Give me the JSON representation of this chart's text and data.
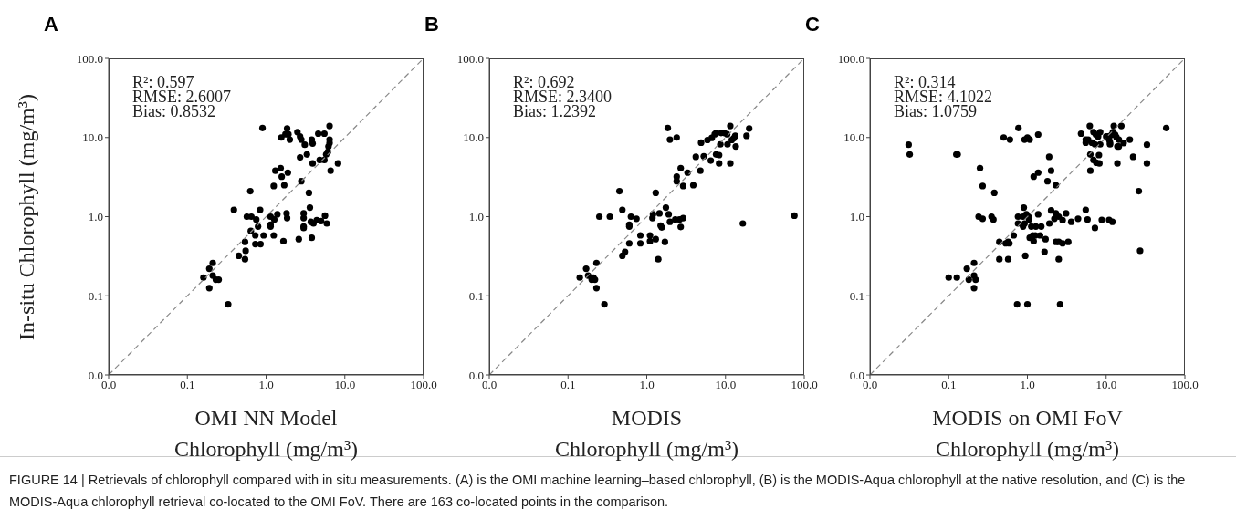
{
  "chart_data": [
    {
      "type": "scatter",
      "title": "A",
      "xlabel": "OMI NN Model\nChlorophyll (mg/m³)",
      "ylabel": "In-situ Chlorophyll (mg/m³)",
      "log": "xy",
      "marker": "circle",
      "xlim": [
        0.01,
        100
      ],
      "ylim": [
        0.01,
        100
      ],
      "xticks": [
        {
          "value": 0.01,
          "label": "0.0"
        },
        {
          "value": 0.1,
          "label": "0.1"
        },
        {
          "value": 1,
          "label": "1.0"
        },
        {
          "value": 10,
          "label": "10.0"
        },
        {
          "value": 100,
          "label": "100.0"
        }
      ],
      "yticks": [
        {
          "value": 0.01,
          "label": "0.0"
        },
        {
          "value": 0.1,
          "label": "0.1"
        },
        {
          "value": 1,
          "label": "1.0"
        },
        {
          "value": 10,
          "label": "10.0"
        },
        {
          "value": 100,
          "label": "100.0"
        }
      ],
      "annotations": [
        "R²: 0.597",
        "RMSE: 2.6007",
        "Bias: 0.8532"
      ],
      "series": [
        {
          "type": "scatter",
          "color": "#000000",
          "x": [
            0.16,
            0.19,
            0.21,
            0.19,
            0.21,
            0.23,
            0.25,
            0.33,
            0.39,
            0.45,
            0.9,
            0.63,
            0.54,
            0.55,
            0.54,
            0.57,
            0.65,
            0.75,
            0.64,
            0.79,
            0.73,
            0.73,
            0.85,
            0.84,
            0.93,
            1.14,
            1.14,
            1.14,
            1.27,
            1.39,
            1.25,
            1.25,
            1.31,
            1.53,
            1.58,
            1.7,
            1.89,
            1.56,
            1.85,
            1.92,
            2.0,
            1.76,
            1.66,
            1.82,
            1.85,
            2.5,
            2.7,
            2.8,
            3.1,
            2.7,
            2.8,
            3.0,
            3.0,
            3.0,
            3.0,
            2.6,
            3.3,
            3.5,
            3.6,
            3.8,
            3.9,
            3.9,
            3.8,
            3.7,
            4.0,
            4.4,
            5.0,
            5.6,
            5.9,
            4.6,
            5.5,
            4.8,
            5.5,
            5.8,
            6.1,
            6.4,
            6.4,
            6.4,
            6.2,
            6.6,
            8.2
          ],
          "values": [
            0.17,
            0.22,
            0.26,
            0.125,
            0.18,
            0.16,
            0.16,
            0.078,
            1.22,
            0.32,
            13.2,
            2.1,
            0.48,
            0.37,
            0.29,
            1.0,
            1.0,
            0.92,
            0.66,
            0.75,
            0.58,
            0.45,
            0.45,
            1.22,
            0.58,
            1.0,
            0.79,
            0.75,
            0.92,
            1.07,
            2.44,
            0.58,
            3.8,
            4.1,
            3.2,
            2.5,
            3.6,
            10,
            13,
            11,
            9.4,
            11,
            0.49,
            1.1,
            0.96,
            11.7,
            10.3,
            9.4,
            8.1,
            5.6,
            2.8,
            1.1,
            0.96,
            0.75,
            0.72,
            0.52,
            6.1,
            2.0,
            1.3,
            9.4,
            8.4,
            4.7,
            0.54,
            0.86,
            0.82,
            0.9,
            0.88,
            1.03,
            0.82,
            11.2,
            11.2,
            5.2,
            5.2,
            6.1,
            6.6,
            14.0,
            9.4,
            8.5,
            7.7,
            3.8,
            4.7
          ]
        },
        {
          "type": "line",
          "color": "#888888",
          "line_style": "dashed",
          "marker": "none",
          "x": [
            0.01,
            100
          ],
          "values": [
            0.01,
            100
          ]
        }
      ]
    },
    {
      "type": "scatter",
      "title": "B",
      "xlabel": "MODIS\nChlorophyll (mg/m³)",
      "log": "xy",
      "marker": "circle",
      "xlim": [
        0.01,
        100
      ],
      "ylim": [
        0.01,
        100
      ],
      "xticks": [
        {
          "value": 0.01,
          "label": "0.0"
        },
        {
          "value": 0.1,
          "label": "0.1"
        },
        {
          "value": 1,
          "label": "1.0"
        },
        {
          "value": 10,
          "label": "10.0"
        },
        {
          "value": 100,
          "label": "100.0"
        }
      ],
      "yticks": [
        {
          "value": 0.01,
          "label": "0.0"
        },
        {
          "value": 0.1,
          "label": "0.1"
        },
        {
          "value": 1,
          "label": "1.0"
        },
        {
          "value": 10,
          "label": "10.0"
        },
        {
          "value": 100,
          "label": "100.0"
        }
      ],
      "annotations": [
        "R²: 0.692",
        "RMSE: 2.3400",
        "Bias: 1.2392"
      ],
      "series": [
        {
          "type": "scatter",
          "color": "#000000",
          "x": [
            0.141,
            0.17,
            0.18,
            0.2,
            0.21,
            0.22,
            0.23,
            0.23,
            0.29,
            0.25,
            0.34,
            0.45,
            0.49,
            0.49,
            0.53,
            0.6,
            0.6,
            0.6,
            0.63,
            0.74,
            0.83,
            0.83,
            1.1,
            1.1,
            1.18,
            1.2,
            1.3,
            1.3,
            1.4,
            1.45,
            1.5,
            1.55,
            1.7,
            1.75,
            1.9,
            1.97,
            2.3,
            2.6,
            2.9,
            2.7,
            1.85,
            1.97,
            2.4,
            2.4,
            2.4,
            2.7,
            2.9,
            3.3,
            3.9,
            4.2,
            4.8,
            4.9,
            5.3,
            5.9,
            6.5,
            6.7,
            7.3,
            7.6,
            7.6,
            8.3,
            8.3,
            8.6,
            8.8,
            9.6,
            10.5,
            10.6,
            11.5,
            11.5,
            12,
            12.7,
            13.3,
            13.5,
            18.5,
            20,
            16.6,
            75
          ],
          "values": [
            0.17,
            0.22,
            0.18,
            0.16,
            0.17,
            0.16,
            0.26,
            0.125,
            0.078,
            1.0,
            1.0,
            2.1,
            1.22,
            0.32,
            0.36,
            0.46,
            0.79,
            0.75,
            1.0,
            0.94,
            0.58,
            0.46,
            0.58,
            0.49,
            0.96,
            1.07,
            2.0,
            0.52,
            0.29,
            1.1,
            0.77,
            0.73,
            0.48,
            1.3,
            1.07,
            0.86,
            0.92,
            0.92,
            0.96,
            0.74,
            13.2,
            9.4,
            10,
            3.2,
            2.8,
            4.1,
            2.44,
            3.6,
            2.5,
            5.7,
            3.8,
            8.6,
            5.8,
            9.3,
            5.1,
            9.9,
            11,
            11.4,
            6.1,
            6.0,
            4.7,
            8.2,
            11.4,
            11.4,
            11,
            8.2,
            4.7,
            14,
            9.3,
            9.8,
            10.5,
            7.7,
            10.5,
            13,
            0.82,
            1.03
          ]
        },
        {
          "type": "line",
          "color": "#888888",
          "line_style": "dashed",
          "marker": "none",
          "x": [
            0.01,
            100
          ],
          "values": [
            0.01,
            100
          ]
        }
      ]
    },
    {
      "type": "scatter",
      "title": "C",
      "xlabel": "MODIS on OMI FoV\nChlorophyll (mg/m³)",
      "log": "xy",
      "marker": "circle",
      "xlim": [
        0.01,
        100
      ],
      "ylim": [
        0.01,
        100
      ],
      "xticks": [
        {
          "value": 0.01,
          "label": "0.0"
        },
        {
          "value": 0.1,
          "label": "0.1"
        },
        {
          "value": 1,
          "label": "1.0"
        },
        {
          "value": 10,
          "label": "10.0"
        },
        {
          "value": 100,
          "label": "100.0"
        }
      ],
      "yticks": [
        {
          "value": 0.01,
          "label": "0.0"
        },
        {
          "value": 0.1,
          "label": "0.1"
        },
        {
          "value": 1,
          "label": "1.0"
        },
        {
          "value": 10,
          "label": "10.0"
        },
        {
          "value": 100,
          "label": "100.0"
        }
      ],
      "annotations": [
        "R²: 0.314",
        "RMSE: 4.1022",
        "Bias: 1.0759",
        "FIGURE 14 | Retrievals of chlorophyll compared with in situ measurements. (A) is the OMI machine learning–based chlorophyll, (B) is the MODIS-Aqua chlorophyll at the native resolution, and (C) is the MODIS-Aqua chlorophyll retrieval co-located to the OMI FoV. There are 163 co-located points in the comparison."
      ],
      "series": [
        {
          "type": "scatter",
          "color": "#000000",
          "x": [
            0.031,
            0.032,
            0.125,
            0.13,
            0.1,
            0.127,
            0.17,
            0.18,
            0.21,
            0.21,
            0.22,
            0.21,
            0.25,
            0.27,
            0.38,
            0.24,
            0.27,
            0.35,
            0.37,
            0.44,
            0.44,
            0.5,
            0.6,
            0.77,
            0.92,
            1.0,
            1.07,
            1.37,
            0.53,
            0.57,
            0.59,
            0.57,
            0.67,
            0.74,
            1.0,
            0.76,
            0.76,
            0.9,
            0.88,
            0.97,
            1.03,
            0.88,
            0.92,
            1.05,
            0.94,
            1.07,
            1.17,
            1.2,
            1.12,
            1.28,
            1.5,
            1.37,
            1.26,
            1.45,
            1.7,
            1.65,
            1.2,
            1.37,
            1.8,
            1.89,
            2.0,
            2.3,
            1.9,
            2.0,
            2.2,
            2.3,
            2.5,
            2.8,
            3.1,
            2.3,
            2.5,
            2.8,
            3.3,
            2.5,
            2.6,
            3.6,
            4.4,
            5.5,
            5.8,
            7.2,
            8.8,
            10.9,
            12,
            27,
            26,
            33,
            33,
            22,
            20,
            58,
            4.8,
            5.5,
            5.5,
            5.9,
            6.2,
            6.3,
            6.3,
            6.6,
            6.9,
            7.2,
            6.9,
            7.4,
            7.9,
            8.4,
            7.5,
            8.2,
            8.1,
            8.4,
            10,
            10.5,
            11.2,
            11.7,
            12.2,
            12.5,
            13,
            13.5,
            13.9,
            14.5,
            13.9,
            15.6,
            14.5,
            16.7,
            11.2,
            10.9
          ],
          "values": [
            8.1,
            6.1,
            6.1,
            6.1,
            0.17,
            0.17,
            0.22,
            0.16,
            0.26,
            0.18,
            0.16,
            0.125,
            4.1,
            2.44,
            2.0,
            1.0,
            0.94,
            1.0,
            0.92,
            0.48,
            0.29,
            10,
            9.4,
            13.2,
            9.4,
            10,
            9.4,
            10.9,
            0.46,
            0.48,
            0.46,
            0.29,
            0.58,
            0.078,
            0.078,
            1.0,
            0.82,
            1.3,
            1.0,
            1.07,
            1.0,
            0.75,
            0.82,
            0.92,
            0.32,
            0.54,
            0.58,
            0.49,
            0.75,
            0.75,
            0.75,
            1.07,
            0.58,
            0.58,
            0.52,
            0.36,
            3.2,
            3.6,
            2.8,
            5.7,
            3.8,
            2.5,
            0.82,
            1.2,
            0.94,
            1.1,
            1.0,
            0.9,
            1.1,
            0.48,
            0.48,
            0.46,
            0.48,
            0.29,
            0.078,
            0.86,
            0.94,
            1.22,
            0.92,
            0.72,
            0.91,
            0.91,
            0.86,
            0.37,
            2.1,
            8.1,
            4.7,
            5.7,
            9.4,
            13.2,
            11.2,
            9.4,
            8.6,
            9.4,
            14,
            6.1,
            3.8,
            8.6,
            11.7,
            8.2,
            5.2,
            10.9,
            10.3,
            11.7,
            4.8,
            4.7,
            6.0,
            8.2,
            10.3,
            10.3,
            8.6,
            10.8,
            11.7,
            14,
            10.9,
            10.1,
            7.7,
            7.7,
            4.7,
            14,
            9.4,
            8.5,
            8.2,
            9.4
          ]
        },
        {
          "type": "line",
          "color": "#888888",
          "line_style": "dashed",
          "marker": "none",
          "x": [
            0.01,
            100
          ],
          "values": [
            0.01,
            100
          ]
        }
      ]
    }
  ]
}
